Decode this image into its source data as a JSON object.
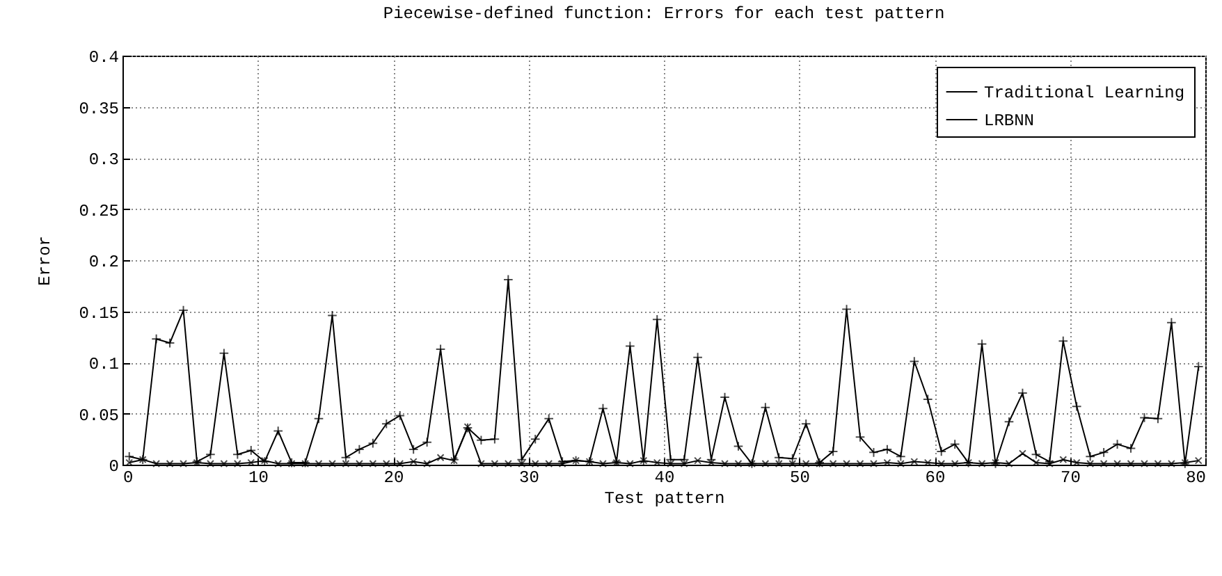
{
  "chart_data": {
    "type": "line",
    "title": "Piecewise-defined function: Errors for each test pattern",
    "xlabel": "Test pattern",
    "ylabel": "Error",
    "x": [
      0.5,
      1.5,
      2.5,
      3.5,
      4.5,
      5.5,
      6.5,
      7.5,
      8.5,
      9.5,
      10.5,
      11.5,
      12.5,
      13.5,
      14.5,
      15.5,
      16.5,
      17.5,
      18.5,
      19.5,
      20.5,
      21.5,
      22.5,
      23.5,
      24.5,
      25.5,
      26.5,
      27.5,
      28.5,
      29.5,
      30.5,
      31.5,
      32.5,
      33.5,
      34.5,
      35.5,
      36.5,
      37.5,
      38.5,
      39.5,
      40.5,
      41.5,
      42.5,
      43.5,
      44.5,
      45.5,
      46.5,
      47.5,
      48.5,
      49.5,
      50.5,
      51.5,
      52.5,
      53.5,
      54.5,
      55.5,
      56.5,
      57.5,
      58.5,
      59.5,
      60.5,
      61.5,
      62.5,
      63.5,
      64.5,
      65.5,
      66.5,
      67.5,
      68.5,
      69.5,
      70.5,
      71.5,
      72.5,
      73.5,
      74.5,
      75.5,
      76.5,
      77.5,
      78.5,
      79.5
    ],
    "series": [
      {
        "name": "Traditional Learning",
        "color": "#000000",
        "values": [
          0.008,
          0.005,
          0.123,
          0.119,
          0.151,
          0.003,
          0.01,
          0.109,
          0.01,
          0.014,
          0.003,
          0.033,
          0.002,
          0.002,
          0.045,
          0.146,
          0.007,
          0.015,
          0.021,
          0.04,
          0.048,
          0.015,
          0.022,
          0.113,
          0.005,
          0.036,
          0.024,
          0.025,
          0.181,
          0.005,
          0.025,
          0.045,
          0.003,
          0.004,
          0.003,
          0.055,
          0.003,
          0.116,
          0.003,
          0.142,
          0.005,
          0.005,
          0.105,
          0.005,
          0.066,
          0.018,
          0.001,
          0.056,
          0.007,
          0.006,
          0.04,
          0.002,
          0.013,
          0.152,
          0.027,
          0.012,
          0.015,
          0.008,
          0.101,
          0.064,
          0.013,
          0.02,
          0.002,
          0.118,
          0.001,
          0.042,
          0.07,
          0.01,
          0.003,
          0.121,
          0.057,
          0.008,
          0.012,
          0.02,
          0.016,
          0.046,
          0.045,
          0.139,
          0.001,
          0.096
        ]
      },
      {
        "name": "LRBNN",
        "color": "#000000",
        "values": [
          0.002,
          0.005,
          0.001,
          0.001,
          0.001,
          0.002,
          0.001,
          0.001,
          0.001,
          0.002,
          0.004,
          0.001,
          0.001,
          0.001,
          0.001,
          0.001,
          0.001,
          0.001,
          0.001,
          0.001,
          0.001,
          0.003,
          0.001,
          0.007,
          0.004,
          0.037,
          0.001,
          0.001,
          0.001,
          0.001,
          0.001,
          0.001,
          0.001,
          0.004,
          0.003,
          0.001,
          0.002,
          0.001,
          0.004,
          0.002,
          0.001,
          0.001,
          0.004,
          0.002,
          0.001,
          0.001,
          0.001,
          0.001,
          0.001,
          0.001,
          0.001,
          0.001,
          0.001,
          0.001,
          0.001,
          0.001,
          0.002,
          0.001,
          0.003,
          0.002,
          0.001,
          0.001,
          0.002,
          0.001,
          0.002,
          0.001,
          0.011,
          0.002,
          0.001,
          0.005,
          0.002,
          0.001,
          0.001,
          0.001,
          0.001,
          0.001,
          0.001,
          0.001,
          0.002,
          0.004
        ]
      }
    ],
    "xlim": [
      0,
      80
    ],
    "xticks": [
      0,
      10,
      20,
      30,
      40,
      50,
      60,
      70,
      80
    ],
    "ylim": [
      0,
      0.4
    ],
    "yticks": [
      0,
      0.05,
      0.1,
      0.15,
      0.2,
      0.25,
      0.3,
      0.35,
      0.4
    ],
    "grid": true,
    "legend": "top right",
    "marker": "cross",
    "line_style": "solid"
  }
}
